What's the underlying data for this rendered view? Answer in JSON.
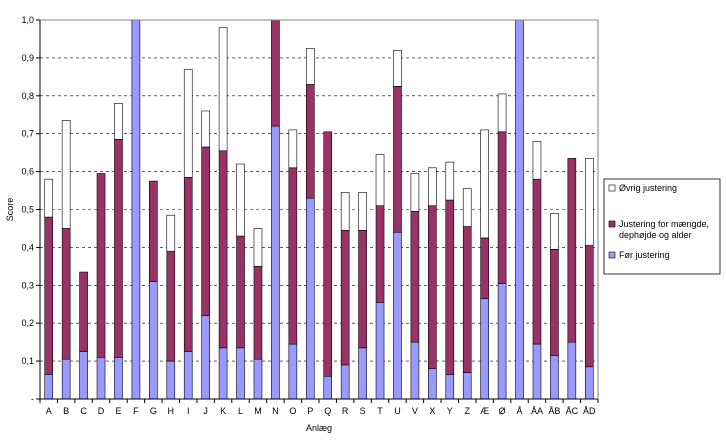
{
  "chart_data": {
    "type": "bar",
    "stacked": true,
    "title": "",
    "xlabel": "Anlæg",
    "ylabel": "Score",
    "ylim": [
      0,
      1.0
    ],
    "yticks": [
      "-",
      "0,1",
      "0,2",
      "0,3",
      "0,4",
      "0,5",
      "0,6",
      "0,7",
      "0,8",
      "0,9",
      "1,0"
    ],
    "grid": "horizontal-dashed",
    "legend_position": "right",
    "categories": [
      "A",
      "B",
      "C",
      "D",
      "E",
      "F",
      "G",
      "H",
      "I",
      "J",
      "K",
      "L",
      "M",
      "N",
      "O",
      "P",
      "Q",
      "R",
      "S",
      "T",
      "U",
      "V",
      "X",
      "Y",
      "Z",
      "Æ",
      "Ø",
      "Å",
      "ÅA",
      "ÅB",
      "ÅC",
      "ÅD"
    ],
    "series": [
      {
        "name": "Før justering",
        "color": "#9999ff",
        "values": [
          0.065,
          0.105,
          0.125,
          0.11,
          0.11,
          1.0,
          0.31,
          0.1,
          0.125,
          0.22,
          0.135,
          0.135,
          0.105,
          0.72,
          0.145,
          0.53,
          0.06,
          0.09,
          0.135,
          0.255,
          0.44,
          0.15,
          0.08,
          0.065,
          0.07,
          0.265,
          0.305,
          1.0,
          0.145,
          0.115,
          0.15,
          0.085
        ]
      },
      {
        "name": "Justering for mængde, dephøjde og alder",
        "color": "#993366",
        "values": [
          0.415,
          0.345,
          0.21,
          0.485,
          0.575,
          0.0,
          0.265,
          0.29,
          0.46,
          0.445,
          0.52,
          0.295,
          0.245,
          0.29,
          0.465,
          0.3,
          0.645,
          0.355,
          0.31,
          0.255,
          0.385,
          0.345,
          0.43,
          0.46,
          0.385,
          0.16,
          0.4,
          0.0,
          0.435,
          0.28,
          0.485,
          0.32
        ]
      },
      {
        "name": "Øvrig justering",
        "color": "#ffffff",
        "values": [
          0.1,
          0.285,
          0.0,
          0.0,
          0.095,
          0.0,
          0.0,
          0.095,
          0.285,
          0.095,
          0.325,
          0.19,
          0.1,
          0.0,
          0.1,
          0.095,
          0.0,
          0.1,
          0.1,
          0.135,
          0.095,
          0.1,
          0.1,
          0.1,
          0.1,
          0.285,
          0.1,
          0.0,
          0.1,
          0.095,
          0.0,
          0.23
        ]
      }
    ]
  }
}
